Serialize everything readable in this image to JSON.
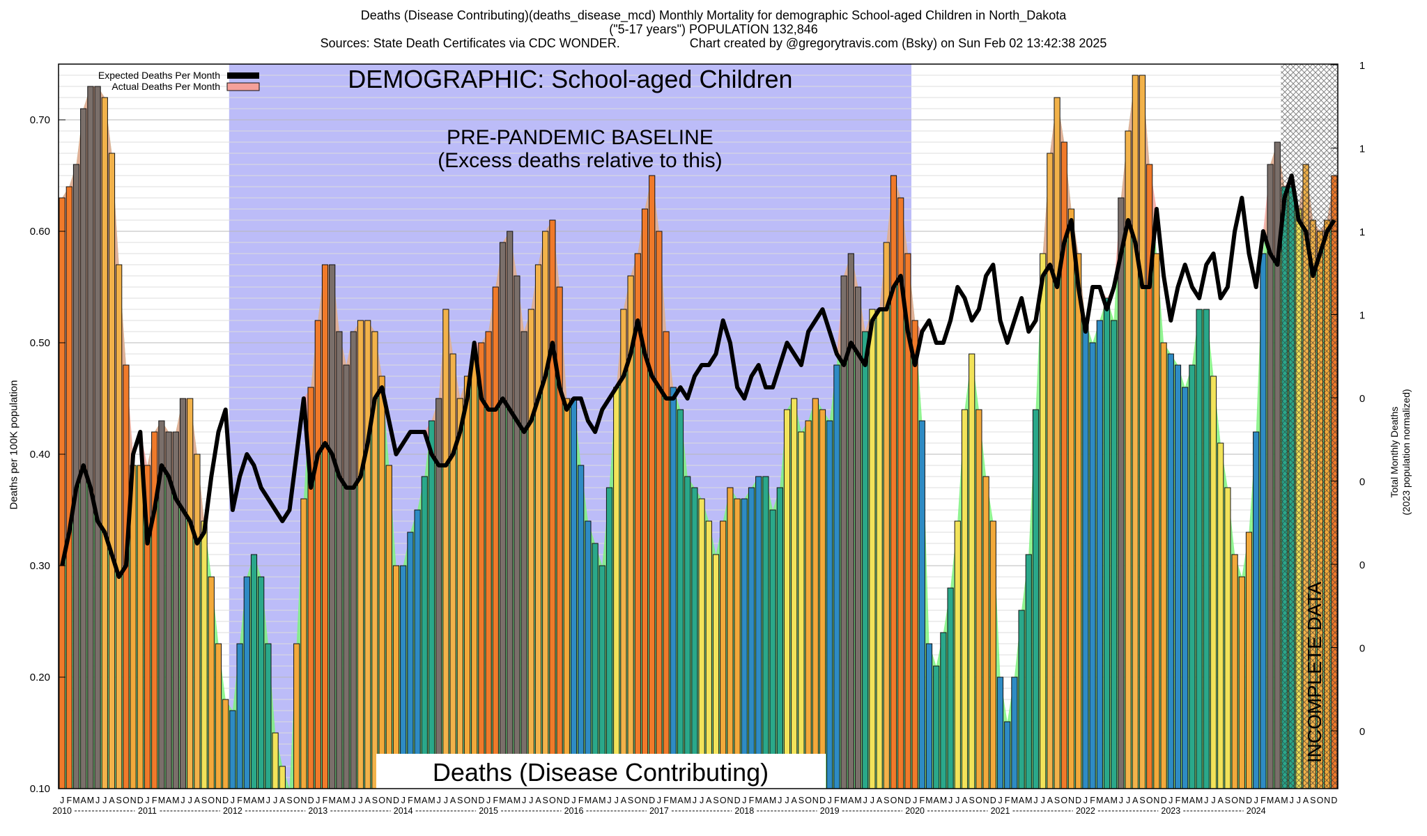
{
  "chart_data": {
    "type": "bar",
    "title": "Deaths (Disease Contributing)(deaths_disease_mcd) Monthly Mortality for demographic School-aged Children in North_Dakota",
    "subtitle": "(\"5-17 years\") POPULATION 132,846",
    "sources": "Sources: State Death Certificates via CDC WONDER.",
    "credit": "Chart created by @gregorytravis.com (Bsky) on Sun Feb 02 13:42:38 2025",
    "ylabel": "Deaths per 100K population",
    "y2label": [
      "Total Monthly Deaths",
      "(2023 population normalized)"
    ],
    "ylim": [
      0.1,
      0.75
    ],
    "y_ticks": [
      0.1,
      0.2,
      0.3,
      0.4,
      0.5,
      0.6,
      0.7
    ],
    "y_tick_labels": [
      "0.10",
      "0.20",
      "0.30",
      "0.40",
      "0.50",
      "0.60",
      "0.70"
    ],
    "y2_tick_labels": [
      "1",
      "1",
      "1",
      "1",
      "0",
      "0",
      "0",
      "0",
      "0"
    ],
    "grid": true,
    "legend_position": "top-left",
    "legend": [
      {
        "label": "Expected Deaths Per Month",
        "color": "#000000"
      },
      {
        "label": "Actual Deaths Per Month",
        "color": "#f4a09a"
      }
    ],
    "annotations": {
      "demographic": "DEMOGRAPHIC: School-aged Children",
      "baseline": [
        "PRE-PANDEMIC BASELINE",
        "(Excess deaths relative to this)"
      ],
      "metric": "Deaths (Disease Contributing)",
      "incomplete": "INCOMPLETE DATA"
    },
    "baseline_period": [
      "2012-01",
      "2019-12"
    ],
    "incomplete_period": [
      "2024-05",
      "2024-12"
    ],
    "month_letters": [
      "J",
      "F",
      "M",
      "A",
      "M",
      "J",
      "J",
      "A",
      "S",
      "O",
      "N",
      "D"
    ],
    "years": [
      "2010",
      "2011",
      "2012",
      "2013",
      "2014",
      "2015",
      "2016",
      "2017",
      "2018",
      "2019",
      "2020",
      "2021",
      "2022",
      "2023",
      "2024"
    ],
    "actual": [
      0.63,
      0.64,
      0.66,
      0.71,
      0.73,
      0.73,
      0.72,
      0.67,
      0.57,
      0.48,
      0.39,
      0.39,
      0.39,
      0.42,
      0.43,
      0.42,
      0.42,
      0.45,
      0.45,
      0.4,
      0.34,
      0.29,
      0.23,
      0.18,
      0.17,
      0.23,
      0.29,
      0.31,
      0.29,
      0.23,
      0.15,
      0.12,
      0.1,
      0.23,
      0.36,
      0.46,
      0.52,
      0.57,
      0.57,
      0.51,
      0.48,
      0.51,
      0.52,
      0.52,
      0.51,
      0.47,
      0.39,
      0.3,
      0.3,
      0.33,
      0.35,
      0.38,
      0.43,
      0.45,
      0.53,
      0.49,
      0.45,
      0.47,
      0.49,
      0.5,
      0.51,
      0.55,
      0.59,
      0.6,
      0.56,
      0.51,
      0.53,
      0.57,
      0.6,
      0.61,
      0.55,
      0.45,
      0.45,
      0.39,
      0.34,
      0.32,
      0.3,
      0.37,
      0.46,
      0.53,
      0.56,
      0.58,
      0.62,
      0.65,
      0.6,
      0.51,
      0.46,
      0.44,
      0.38,
      0.37,
      0.36,
      0.34,
      0.31,
      0.34,
      0.37,
      0.36,
      0.36,
      0.37,
      0.38,
      0.38,
      0.35,
      0.37,
      0.44,
      0.45,
      0.42,
      0.43,
      0.45,
      0.44,
      0.43,
      0.48,
      0.56,
      0.58,
      0.55,
      0.51,
      0.53,
      0.53,
      0.59,
      0.65,
      0.63,
      0.58,
      0.52,
      0.43,
      0.23,
      0.21,
      0.24,
      0.28,
      0.34,
      0.44,
      0.49,
      0.44,
      0.38,
      0.34,
      0.2,
      0.16,
      0.2,
      0.26,
      0.31,
      0.44,
      0.58,
      0.67,
      0.72,
      0.68,
      0.62,
      0.58,
      0.52,
      0.5,
      0.52,
      0.54,
      0.52,
      0.63,
      0.69,
      0.74,
      0.74,
      0.66,
      0.58,
      0.5,
      0.49,
      0.48,
      0.46,
      0.48,
      0.53,
      0.53,
      0.47,
      0.41,
      0.37,
      0.31,
      0.29,
      0.33,
      0.42,
      0.58,
      0.66,
      0.68,
      0.64,
      0.64,
      0.62,
      0.66,
      0.61,
      0.6,
      0.61,
      0.65
    ],
    "expected": [
      0.3,
      0.33,
      0.37,
      0.39,
      0.37,
      0.34,
      0.33,
      0.31,
      0.29,
      0.3,
      0.4,
      0.42,
      0.32,
      0.35,
      0.39,
      0.38,
      0.36,
      0.35,
      0.34,
      0.32,
      0.33,
      0.38,
      0.42,
      0.44,
      0.35,
      0.38,
      0.4,
      0.39,
      0.37,
      0.36,
      0.35,
      0.34,
      0.35,
      0.4,
      0.45,
      0.37,
      0.4,
      0.41,
      0.4,
      0.38,
      0.37,
      0.37,
      0.38,
      0.41,
      0.45,
      0.46,
      0.43,
      0.4,
      0.41,
      0.42,
      0.42,
      0.42,
      0.4,
      0.39,
      0.39,
      0.4,
      0.42,
      0.45,
      0.5,
      0.45,
      0.44,
      0.44,
      0.45,
      0.44,
      0.43,
      0.42,
      0.43,
      0.45,
      0.47,
      0.5,
      0.46,
      0.44,
      0.45,
      0.45,
      0.43,
      0.42,
      0.44,
      0.45,
      0.46,
      0.47,
      0.49,
      0.52,
      0.49,
      0.47,
      0.46,
      0.45,
      0.45,
      0.46,
      0.45,
      0.47,
      0.48,
      0.48,
      0.49,
      0.52,
      0.5,
      0.46,
      0.45,
      0.47,
      0.48,
      0.46,
      0.46,
      0.48,
      0.5,
      0.49,
      0.48,
      0.51,
      0.52,
      0.53,
      0.51,
      0.49,
      0.48,
      0.5,
      0.49,
      0.48,
      0.52,
      0.53,
      0.53,
      0.55,
      0.56,
      0.51,
      0.48,
      0.51,
      0.52,
      0.5,
      0.5,
      0.52,
      0.55,
      0.54,
      0.52,
      0.53,
      0.56,
      0.57,
      0.52,
      0.5,
      0.52,
      0.54,
      0.51,
      0.52,
      0.56,
      0.57,
      0.55,
      0.59,
      0.61,
      0.55,
      0.51,
      0.55,
      0.55,
      0.53,
      0.55,
      0.58,
      0.61,
      0.59,
      0.55,
      0.55,
      0.62,
      0.56,
      0.52,
      0.55,
      0.57,
      0.55,
      0.54,
      0.57,
      0.58,
      0.54,
      0.55,
      0.6,
      0.63,
      0.58,
      0.55,
      0.6,
      0.58,
      0.57,
      0.63,
      0.65,
      0.61,
      0.6,
      0.56,
      0.58,
      0.6,
      0.61
    ]
  }
}
